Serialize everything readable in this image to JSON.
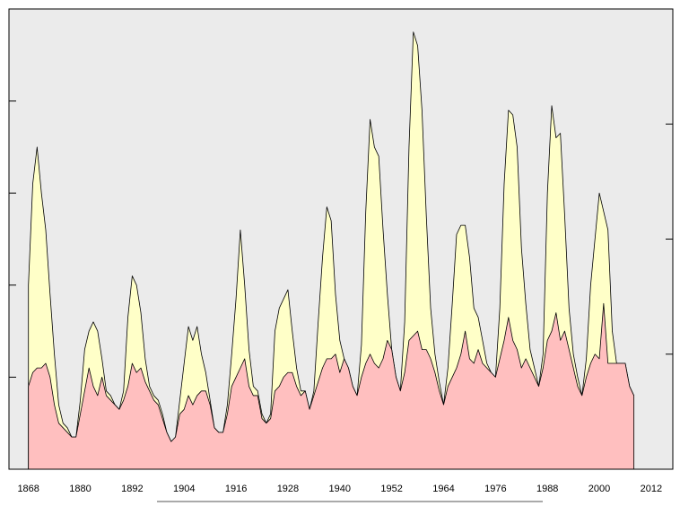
{
  "chart_data": {
    "type": "area",
    "x": [
      1868,
      1869,
      1870,
      1871,
      1872,
      1873,
      1874,
      1875,
      1876,
      1877,
      1878,
      1879,
      1880,
      1881,
      1882,
      1883,
      1884,
      1885,
      1886,
      1887,
      1888,
      1889,
      1890,
      1891,
      1892,
      1893,
      1894,
      1895,
      1896,
      1897,
      1898,
      1899,
      1900,
      1901,
      1902,
      1903,
      1904,
      1905,
      1906,
      1907,
      1908,
      1909,
      1910,
      1911,
      1912,
      1913,
      1914,
      1915,
      1916,
      1917,
      1918,
      1919,
      1920,
      1921,
      1922,
      1923,
      1924,
      1925,
      1926,
      1927,
      1928,
      1929,
      1930,
      1931,
      1932,
      1933,
      1934,
      1935,
      1936,
      1937,
      1938,
      1939,
      1940,
      1941,
      1942,
      1943,
      1944,
      1945,
      1946,
      1947,
      1948,
      1949,
      1950,
      1951,
      1952,
      1953,
      1954,
      1955,
      1956,
      1957,
      1958,
      1959,
      1960,
      1961,
      1962,
      1963,
      1964,
      1965,
      1966,
      1967,
      1968,
      1969,
      1970,
      1971,
      1972,
      1973,
      1974,
      1975,
      1976,
      1977,
      1978,
      1979,
      1980,
      1981,
      1982,
      1983,
      1984,
      1985,
      1986,
      1987,
      1988,
      1989,
      1990,
      1991,
      1992,
      1993,
      1994,
      1995,
      1996,
      1997,
      1998,
      1999,
      2000,
      2001,
      2002,
      2003,
      2004,
      2005,
      2006,
      2007,
      2008
    ],
    "series": [
      {
        "color": "#ffffc8",
        "values": [
          40,
          62,
          70,
          60,
          52,
          38,
          25,
          14,
          10,
          9,
          7,
          7,
          15,
          26,
          30,
          32,
          30,
          24,
          17,
          16,
          14,
          13,
          17,
          33,
          42,
          40,
          34,
          24,
          18,
          16,
          15,
          12,
          8,
          6,
          7,
          15,
          23,
          31,
          28,
          31,
          25,
          21,
          15,
          9,
          8,
          8,
          14,
          25,
          37,
          52,
          40,
          26,
          18,
          17,
          12,
          10,
          12,
          30,
          35,
          37,
          39,
          30,
          22,
          17,
          17,
          13,
          17,
          32,
          46,
          57,
          54,
          38,
          28,
          24,
          22,
          18,
          16,
          27,
          56,
          76,
          70,
          68,
          52,
          38,
          26,
          20,
          17,
          32,
          70,
          95,
          92,
          78,
          55,
          35,
          25,
          19,
          14,
          22,
          36,
          51,
          53,
          53,
          46,
          35,
          33,
          28,
          23,
          21,
          20,
          35,
          62,
          78,
          77,
          70,
          48,
          36,
          26,
          22,
          18,
          25,
          60,
          79,
          72,
          73,
          55,
          35,
          25,
          20,
          16,
          24,
          40,
          50,
          60,
          56,
          52,
          30,
          23,
          23,
          23,
          18,
          16
        ]
      },
      {
        "color": "#ffbfbf",
        "values": [
          18,
          21,
          22,
          22,
          23,
          20,
          14,
          10,
          9,
          8,
          7,
          7,
          12,
          17,
          22,
          18,
          16,
          20,
          16,
          15,
          14,
          13,
          15,
          18,
          23,
          21,
          22,
          19,
          17,
          15,
          14,
          11,
          8,
          6,
          7,
          12,
          13,
          16,
          14,
          16,
          17,
          17,
          14,
          9,
          8,
          8,
          12,
          18,
          20,
          22,
          24,
          18,
          16,
          16,
          11,
          10,
          11,
          17,
          18,
          20,
          21,
          21,
          18,
          16,
          17,
          13,
          16,
          19,
          22,
          24,
          24,
          25,
          21,
          24,
          22,
          18,
          16,
          20,
          23,
          25,
          23,
          22,
          24,
          28,
          26,
          20,
          17,
          21,
          28,
          29,
          30,
          26,
          26,
          24,
          21,
          17,
          14,
          18,
          20,
          22,
          25,
          30,
          24,
          23,
          26,
          23,
          22,
          21,
          20,
          24,
          28,
          33,
          28,
          26,
          22,
          24,
          22,
          20,
          18,
          22,
          28,
          30,
          34,
          28,
          30,
          26,
          22,
          18,
          16,
          20,
          23,
          25,
          24,
          36,
          23,
          23,
          23,
          23,
          23,
          18,
          16
        ]
      }
    ],
    "xlim": [
      1863.5,
      2017
    ],
    "xticks": [
      1868,
      1880,
      1892,
      1904,
      1916,
      1928,
      1940,
      1952,
      1964,
      1976,
      1988,
      2000,
      2012
    ],
    "ylim": [
      0,
      100
    ],
    "yticks": [
      20,
      40,
      60,
      80
    ],
    "y2lim": [
      0,
      100
    ],
    "y2ticks": [
      25,
      50,
      75
    ],
    "background": "#ebebeb",
    "line_color": "#000000"
  }
}
